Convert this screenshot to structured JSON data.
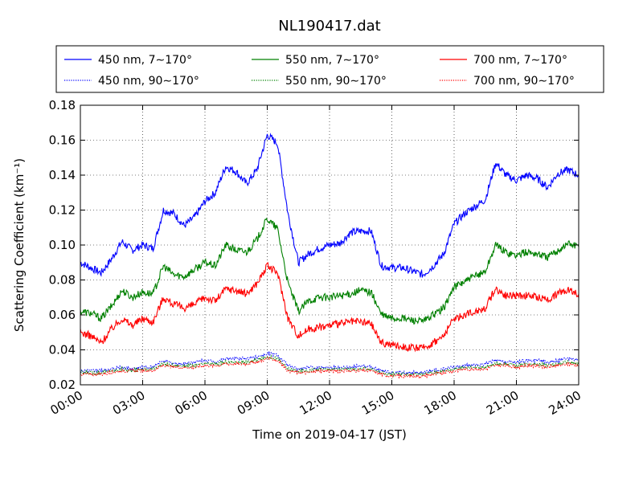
{
  "chart_data": {
    "type": "line",
    "title": "NL190417.dat",
    "xlabel": "Time on 2019-04-17 (JST)",
    "ylabel": "Scattering Coefficient (km⁻¹)",
    "xlim": [
      0,
      24
    ],
    "ylim": [
      0.02,
      0.18
    ],
    "x_ticks": [
      "00:00",
      "03:00",
      "06:00",
      "09:00",
      "12:00",
      "15:00",
      "18:00",
      "21:00",
      "24:00"
    ],
    "y_ticks": [
      "0.02",
      "0.04",
      "0.06",
      "0.08",
      "0.10",
      "0.12",
      "0.14",
      "0.16",
      "0.18"
    ],
    "grid": true,
    "legend_position": "top",
    "x": [
      0,
      0.5,
      1,
      1.5,
      2,
      2.5,
      3,
      3.5,
      4,
      4.5,
      5,
      5.5,
      6,
      6.5,
      7,
      7.5,
      8,
      8.5,
      9,
      9.5,
      10,
      10.5,
      11,
      11.5,
      12,
      12.5,
      13,
      13.5,
      14,
      14.5,
      15,
      15.5,
      16,
      16.5,
      17,
      17.5,
      18,
      18.5,
      19,
      19.5,
      20,
      20.5,
      21,
      21.5,
      22,
      22.5,
      23,
      23.5,
      24
    ],
    "series": [
      {
        "name": "450 nm, 7∼170°",
        "color": "#0000ff",
        "dash": "solid",
        "values": [
          0.09,
          0.087,
          0.084,
          0.092,
          0.102,
          0.097,
          0.1,
          0.098,
          0.12,
          0.118,
          0.111,
          0.116,
          0.125,
          0.13,
          0.145,
          0.142,
          0.135,
          0.143,
          0.163,
          0.158,
          0.118,
          0.09,
          0.095,
          0.098,
          0.1,
          0.101,
          0.107,
          0.108,
          0.108,
          0.088,
          0.087,
          0.087,
          0.085,
          0.083,
          0.088,
          0.095,
          0.112,
          0.118,
          0.122,
          0.126,
          0.147,
          0.14,
          0.137,
          0.14,
          0.138,
          0.133,
          0.141,
          0.143,
          0.14
        ]
      },
      {
        "name": "550 nm, 7∼170°",
        "color": "#008000",
        "dash": "solid",
        "values": [
          0.062,
          0.061,
          0.058,
          0.065,
          0.074,
          0.07,
          0.073,
          0.072,
          0.088,
          0.083,
          0.082,
          0.086,
          0.09,
          0.088,
          0.1,
          0.097,
          0.096,
          0.103,
          0.115,
          0.109,
          0.078,
          0.062,
          0.068,
          0.07,
          0.07,
          0.071,
          0.072,
          0.074,
          0.073,
          0.06,
          0.058,
          0.058,
          0.057,
          0.056,
          0.06,
          0.064,
          0.076,
          0.079,
          0.082,
          0.085,
          0.1,
          0.096,
          0.094,
          0.096,
          0.095,
          0.093,
          0.097,
          0.101,
          0.099
        ]
      },
      {
        "name": "700 nm, 7∼170°",
        "color": "#ff0000",
        "dash": "solid",
        "values": [
          0.05,
          0.048,
          0.044,
          0.052,
          0.058,
          0.054,
          0.058,
          0.056,
          0.07,
          0.066,
          0.064,
          0.066,
          0.07,
          0.068,
          0.075,
          0.074,
          0.072,
          0.078,
          0.088,
          0.084,
          0.058,
          0.048,
          0.052,
          0.053,
          0.054,
          0.055,
          0.056,
          0.056,
          0.055,
          0.044,
          0.043,
          0.042,
          0.041,
          0.041,
          0.044,
          0.048,
          0.058,
          0.06,
          0.062,
          0.064,
          0.075,
          0.071,
          0.071,
          0.071,
          0.07,
          0.069,
          0.072,
          0.075,
          0.072
        ]
      },
      {
        "name": "450 nm, 90∼170°",
        "color": "#0000ff",
        "dash": "dotted",
        "values": [
          0.028,
          0.028,
          0.028,
          0.029,
          0.03,
          0.029,
          0.03,
          0.03,
          0.034,
          0.032,
          0.032,
          0.033,
          0.034,
          0.033,
          0.035,
          0.035,
          0.035,
          0.036,
          0.038,
          0.037,
          0.031,
          0.029,
          0.03,
          0.03,
          0.03,
          0.03,
          0.03,
          0.031,
          0.03,
          0.028,
          0.027,
          0.027,
          0.027,
          0.027,
          0.028,
          0.029,
          0.03,
          0.031,
          0.031,
          0.032,
          0.034,
          0.033,
          0.033,
          0.034,
          0.034,
          0.033,
          0.034,
          0.035,
          0.034
        ]
      },
      {
        "name": "550 nm, 90∼170°",
        "color": "#008000",
        "dash": "dotted",
        "values": [
          0.027,
          0.027,
          0.027,
          0.028,
          0.029,
          0.028,
          0.029,
          0.029,
          0.032,
          0.031,
          0.031,
          0.031,
          0.032,
          0.032,
          0.033,
          0.033,
          0.033,
          0.034,
          0.036,
          0.035,
          0.029,
          0.028,
          0.028,
          0.029,
          0.029,
          0.029,
          0.029,
          0.029,
          0.029,
          0.027,
          0.026,
          0.026,
          0.026,
          0.026,
          0.027,
          0.028,
          0.029,
          0.03,
          0.03,
          0.03,
          0.032,
          0.032,
          0.031,
          0.032,
          0.032,
          0.031,
          0.032,
          0.033,
          0.032
        ]
      },
      {
        "name": "700 nm, 90∼170°",
        "color": "#ff0000",
        "dash": "dotted",
        "values": [
          0.026,
          0.026,
          0.026,
          0.027,
          0.028,
          0.028,
          0.028,
          0.028,
          0.031,
          0.03,
          0.03,
          0.03,
          0.031,
          0.031,
          0.032,
          0.032,
          0.032,
          0.033,
          0.035,
          0.034,
          0.028,
          0.027,
          0.027,
          0.028,
          0.028,
          0.028,
          0.028,
          0.028,
          0.028,
          0.026,
          0.025,
          0.025,
          0.025,
          0.025,
          0.026,
          0.027,
          0.028,
          0.029,
          0.029,
          0.029,
          0.031,
          0.031,
          0.03,
          0.031,
          0.031,
          0.03,
          0.031,
          0.032,
          0.031
        ]
      }
    ]
  }
}
